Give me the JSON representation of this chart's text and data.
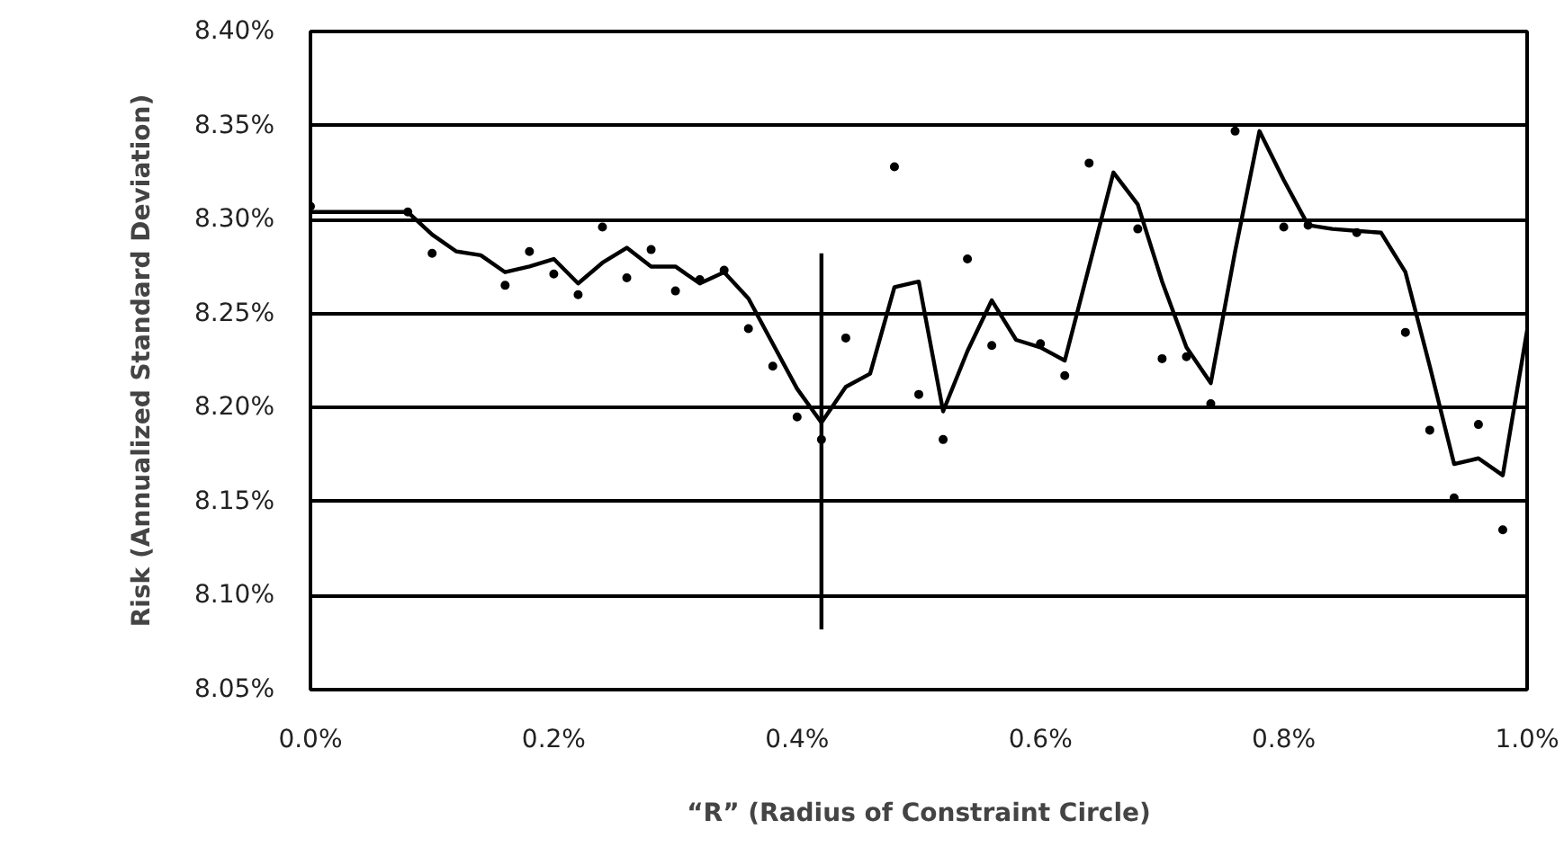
{
  "chart_data": {
    "type": "scatter",
    "xlabel": "“R” (Radius of Constraint Circle)",
    "ylabel": "Risk (Annualized Standard Deviation)",
    "xlim": [
      0,
      1.0
    ],
    "ylim": [
      8.05,
      8.4
    ],
    "xticks": [
      {
        "value": 0,
        "label": "0.0%"
      },
      {
        "value": 0.2,
        "label": "0.2%"
      },
      {
        "value": 0.4,
        "label": "0.4%"
      },
      {
        "value": 0.6,
        "label": "0.6%"
      },
      {
        "value": 0.8,
        "label": "0.8%"
      },
      {
        "value": 1.0,
        "label": "1.0%"
      }
    ],
    "yticks": [
      {
        "value": 8.05,
        "label": "8.05%"
      },
      {
        "value": 8.1,
        "label": "8.10%"
      },
      {
        "value": 8.15,
        "label": "8.15%"
      },
      {
        "value": 8.2,
        "label": "8.20%"
      },
      {
        "value": 8.25,
        "label": "8.25%"
      },
      {
        "value": 8.3,
        "label": "8.30%"
      },
      {
        "value": 8.35,
        "label": "8.35%"
      },
      {
        "value": 8.4,
        "label": "8.40%"
      }
    ],
    "grid": "y",
    "series": [
      {
        "color": "#000000",
        "marker": "circle",
        "x": [
          0.0,
          0.08,
          0.1,
          0.16,
          0.18,
          0.2,
          0.22,
          0.24,
          0.26,
          0.28,
          0.3,
          0.32,
          0.34,
          0.36,
          0.38,
          0.4,
          0.42,
          0.44,
          0.48,
          0.5,
          0.52,
          0.54,
          0.56,
          0.6,
          0.62,
          0.64,
          0.68,
          0.7,
          0.72,
          0.74,
          0.76,
          0.8,
          0.82,
          0.86,
          0.9,
          0.92,
          0.94,
          0.96,
          0.98
        ],
        "values": [
          8.307,
          8.304,
          8.282,
          8.265,
          8.283,
          8.271,
          8.26,
          8.296,
          8.269,
          8.284,
          8.262,
          8.268,
          8.273,
          8.242,
          8.222,
          8.195,
          8.183,
          8.237,
          8.328,
          8.207,
          8.183,
          8.279,
          8.233,
          8.234,
          8.217,
          8.33,
          8.295,
          8.226,
          8.227,
          8.202,
          8.347,
          8.296,
          8.297,
          8.293,
          8.24,
          8.188,
          8.152,
          8.191,
          8.135
        ]
      },
      {
        "type": "line",
        "color": "#000000",
        "marker": "none",
        "line_style": "solid",
        "x": [
          0.0,
          0.02,
          0.04,
          0.06,
          0.08,
          0.1,
          0.12,
          0.14,
          0.16,
          0.18,
          0.2,
          0.22,
          0.24,
          0.26,
          0.28,
          0.3,
          0.32,
          0.34,
          0.36,
          0.38,
          0.4,
          0.42,
          0.44,
          0.46,
          0.48,
          0.5,
          0.52,
          0.54,
          0.56,
          0.58,
          0.6,
          0.62,
          0.64,
          0.66,
          0.68,
          0.7,
          0.72,
          0.74,
          0.76,
          0.78,
          0.8,
          0.82,
          0.84,
          0.86,
          0.88,
          0.9,
          0.92,
          0.94,
          0.96,
          0.98,
          1.0
        ],
        "values": [
          8.304,
          8.304,
          8.304,
          8.304,
          8.304,
          8.292,
          8.283,
          8.281,
          8.272,
          8.275,
          8.279,
          8.266,
          8.277,
          8.285,
          8.275,
          8.275,
          8.266,
          8.272,
          8.258,
          8.234,
          8.21,
          8.192,
          8.211,
          8.218,
          8.264,
          8.267,
          8.198,
          8.23,
          8.257,
          8.236,
          8.232,
          8.225,
          8.275,
          8.325,
          8.308,
          8.267,
          8.232,
          8.213,
          8.283,
          8.347,
          8.321,
          8.297,
          8.295,
          8.294,
          8.293,
          8.272,
          8.222,
          8.17,
          8.173,
          8.164,
          8.241
        ]
      },
      {
        "type": "line",
        "color": "#000000",
        "marker": "none",
        "line_style": "solid",
        "x": [
          0.42,
          0.42
        ],
        "values": [
          8.082,
          8.282
        ]
      }
    ]
  }
}
